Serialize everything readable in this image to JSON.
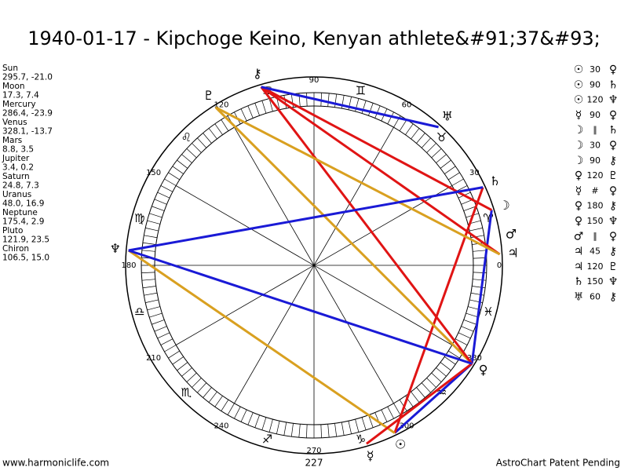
{
  "title": "1940-01-17 - Kipchoge Keino, Kenyan athlete&#91;37&#93;",
  "planets": [
    {
      "name": "Sun",
      "glyph": "☉",
      "pos": "295.7, -21.0"
    },
    {
      "name": "Moon",
      "glyph": "☽",
      "pos": "17.3, 7.4"
    },
    {
      "name": "Mercury",
      "glyph": "☿",
      "pos": "286.4, -23.9"
    },
    {
      "name": "Venus",
      "glyph": "♀",
      "pos": "328.1, -13.7"
    },
    {
      "name": "Mars",
      "glyph": "♂",
      "pos": "8.8, 3.5"
    },
    {
      "name": "Jupiter",
      "glyph": "♃",
      "pos": "3.4, 0.2"
    },
    {
      "name": "Saturn",
      "glyph": "♄",
      "pos": "24.8, 7.3"
    },
    {
      "name": "Uranus",
      "glyph": "♅",
      "pos": "48.0, 16.9"
    },
    {
      "name": "Neptune",
      "glyph": "♆",
      "pos": "175.4, 2.9"
    },
    {
      "name": "Pluto",
      "glyph": "♇",
      "pos": "121.9, 23.5"
    },
    {
      "name": "Chiron",
      "glyph": "⚷",
      "pos": "106.5, 15.0"
    }
  ],
  "aspects": [
    {
      "p1": "☉",
      "aspect": 30,
      "p2": "♀",
      "color": "#1a1ad6"
    },
    {
      "p1": "☉",
      "aspect": 90,
      "p2": "♄",
      "color": "#e01414"
    },
    {
      "p1": "☉",
      "aspect": 120,
      "p2": "♆",
      "color": "#d9a020"
    },
    {
      "p1": "☿",
      "aspect": 90,
      "p2": "♀",
      "color": "#e01414"
    },
    {
      "p1": "☽",
      "aspect": "∥",
      "p2": "♄"
    },
    {
      "p1": "☽",
      "aspect": 30,
      "p2": "♀",
      "color": "#1a1ad6"
    },
    {
      "p1": "☽",
      "aspect": 90,
      "p2": "⚷",
      "color": "#e01414"
    },
    {
      "p1": "♀",
      "aspect": 120,
      "p2": "♇",
      "color": "#d9a020"
    },
    {
      "p1": "☿",
      "aspect": "#",
      "p2": "♀"
    },
    {
      "p1": "♀",
      "aspect": 180,
      "p2": "⚷",
      "color": "#e01414"
    },
    {
      "p1": "♀",
      "aspect": 150,
      "p2": "♆",
      "color": "#1a1ad6"
    },
    {
      "p1": "♂",
      "aspect": "∥",
      "p2": "♀"
    },
    {
      "p1": "♃",
      "aspect": 45,
      "p2": "⚷",
      "color": "#e01414"
    },
    {
      "p1": "♃",
      "aspect": 120,
      "p2": "♇",
      "color": "#d9a020"
    },
    {
      "p1": "♄",
      "aspect": 150,
      "p2": "♆",
      "color": "#1a1ad6"
    },
    {
      "p1": "♅",
      "aspect": 60,
      "p2": "⚷",
      "color": "#1a1ad6"
    }
  ],
  "signs": [
    "♈",
    "♉",
    "♊",
    "♋",
    "♌",
    "♍",
    "♎",
    "♏",
    "♐",
    "♑",
    "♒",
    "♓"
  ],
  "degree_labels": [
    0,
    30,
    60,
    90,
    120,
    150,
    180,
    210,
    240,
    270,
    300,
    330
  ],
  "footer": {
    "left": "www.harmoniclife.com",
    "center": "227",
    "right": "AstroChart Patent Pending"
  }
}
